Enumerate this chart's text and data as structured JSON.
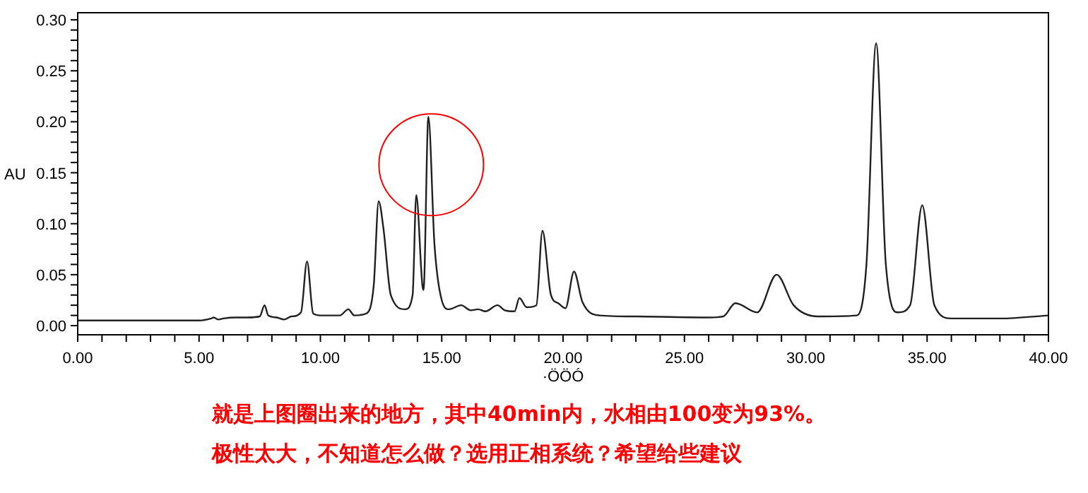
{
  "chart_data": {
    "type": "line",
    "xlabel": "·ÖÖÓ",
    "ylabel": "AU",
    "x": [
      0,
      5,
      5.5,
      5.6,
      5.8,
      6.0,
      6.5,
      7.0,
      7.5,
      7.7,
      7.85,
      8.2,
      8.5,
      8.8,
      9.2,
      9.45,
      9.7,
      10.0,
      10.8,
      11.15,
      11.4,
      11.9,
      12.2,
      12.4,
      12.6,
      12.9,
      13.5,
      13.8,
      13.95,
      14.2,
      14.25,
      14.45,
      14.7,
      15.0,
      15.3,
      15.8,
      16.2,
      16.5,
      16.8,
      17.3,
      17.6,
      18.0,
      18.2,
      18.5,
      18.9,
      19.15,
      19.5,
      19.8,
      20.1,
      20.45,
      20.8,
      21.5,
      23,
      26,
      26.6,
      27.1,
      28.0,
      28.8,
      29.5,
      30.5,
      32.1,
      32.5,
      32.9,
      33.3,
      33.8,
      34.3,
      34.8,
      35.3,
      36,
      38,
      40
    ],
    "series": [
      {
        "color": "#202020",
        "values": [
          0.005,
          0.005,
          0.007,
          0.008,
          0.006,
          0.007,
          0.008,
          0.008,
          0.009,
          0.02,
          0.01,
          0.008,
          0.006,
          0.009,
          0.013,
          0.063,
          0.012,
          0.01,
          0.01,
          0.016,
          0.01,
          0.012,
          0.04,
          0.122,
          0.095,
          0.03,
          0.016,
          0.03,
          0.128,
          0.04,
          0.035,
          0.205,
          0.08,
          0.025,
          0.016,
          0.02,
          0.015,
          0.016,
          0.014,
          0.02,
          0.015,
          0.014,
          0.027,
          0.018,
          0.02,
          0.093,
          0.03,
          0.022,
          0.017,
          0.053,
          0.023,
          0.01,
          0.009,
          0.008,
          0.009,
          0.022,
          0.013,
          0.05,
          0.02,
          0.009,
          0.01,
          0.06,
          0.277,
          0.06,
          0.013,
          0.02,
          0.118,
          0.02,
          0.007,
          0.007,
          0.01
        ]
      }
    ],
    "xlim": [
      0,
      40
    ],
    "ylim": [
      -0.009,
      0.307
    ],
    "xticks": [
      {
        "value": 0,
        "label": "0.00"
      },
      {
        "value": 1,
        "label": null
      },
      {
        "value": 2,
        "label": null
      },
      {
        "value": 3,
        "label": null
      },
      {
        "value": 4,
        "label": null
      },
      {
        "value": 5,
        "label": "5.00"
      },
      {
        "value": 6,
        "label": null
      },
      {
        "value": 7,
        "label": null
      },
      {
        "value": 8,
        "label": null
      },
      {
        "value": 9,
        "label": null
      },
      {
        "value": 10,
        "label": "10.00"
      },
      {
        "value": 11,
        "label": null
      },
      {
        "value": 12,
        "label": null
      },
      {
        "value": 13,
        "label": null
      },
      {
        "value": 14,
        "label": null
      },
      {
        "value": 15,
        "label": "15.00"
      },
      {
        "value": 16,
        "label": null
      },
      {
        "value": 17,
        "label": null
      },
      {
        "value": 18,
        "label": null
      },
      {
        "value": 19,
        "label": null
      },
      {
        "value": 20,
        "label": "20.00"
      },
      {
        "value": 21,
        "label": null
      },
      {
        "value": 22,
        "label": null
      },
      {
        "value": 23,
        "label": null
      },
      {
        "value": 24,
        "label": null
      },
      {
        "value": 25,
        "label": "25.00"
      },
      {
        "value": 26,
        "label": null
      },
      {
        "value": 27,
        "label": null
      },
      {
        "value": 28,
        "label": null
      },
      {
        "value": 29,
        "label": null
      },
      {
        "value": 30,
        "label": "30.00"
      },
      {
        "value": 31,
        "label": null
      },
      {
        "value": 32,
        "label": null
      },
      {
        "value": 33,
        "label": null
      },
      {
        "value": 34,
        "label": null
      },
      {
        "value": 35,
        "label": "35.00"
      },
      {
        "value": 36,
        "label": null
      },
      {
        "value": 37,
        "label": null
      },
      {
        "value": 38,
        "label": null
      },
      {
        "value": 39,
        "label": null
      },
      {
        "value": 40,
        "label": "40.00"
      }
    ],
    "yticks": [
      {
        "value": 0,
        "label": "0.00"
      },
      {
        "value": 0.01,
        "label": null
      },
      {
        "value": 0.02,
        "label": null
      },
      {
        "value": 0.03,
        "label": null
      },
      {
        "value": 0.04,
        "label": null
      },
      {
        "value": 0.05,
        "label": "0.05"
      },
      {
        "value": 0.06,
        "label": null
      },
      {
        "value": 0.07,
        "label": null
      },
      {
        "value": 0.08,
        "label": null
      },
      {
        "value": 0.09,
        "label": null
      },
      {
        "value": 0.1,
        "label": "0.10"
      },
      {
        "value": 0.11,
        "label": null
      },
      {
        "value": 0.12,
        "label": null
      },
      {
        "value": 0.13,
        "label": null
      },
      {
        "value": 0.14,
        "label": null
      },
      {
        "value": 0.15,
        "label": "0.15"
      },
      {
        "value": 0.16,
        "label": null
      },
      {
        "value": 0.17,
        "label": null
      },
      {
        "value": 0.18,
        "label": null
      },
      {
        "value": 0.19,
        "label": null
      },
      {
        "value": 0.2,
        "label": "0.20"
      },
      {
        "value": 0.21,
        "label": null
      },
      {
        "value": 0.22,
        "label": null
      },
      {
        "value": 0.23,
        "label": null
      },
      {
        "value": 0.24,
        "label": null
      },
      {
        "value": 0.25,
        "label": "0.25"
      },
      {
        "value": 0.26,
        "label": null
      },
      {
        "value": 0.27,
        "label": null
      },
      {
        "value": 0.28,
        "label": null
      },
      {
        "value": 0.29,
        "label": null
      },
      {
        "value": 0.3,
        "label": "0.30"
      }
    ],
    "grid": false,
    "marker": "none",
    "line_style": "solid",
    "annotations": [
      "就是上图圈出来的地方，其中40min内，水相由100变为93%。",
      "极性太大，不知道怎么做？选用正相系统？希望给些建议"
    ]
  }
}
